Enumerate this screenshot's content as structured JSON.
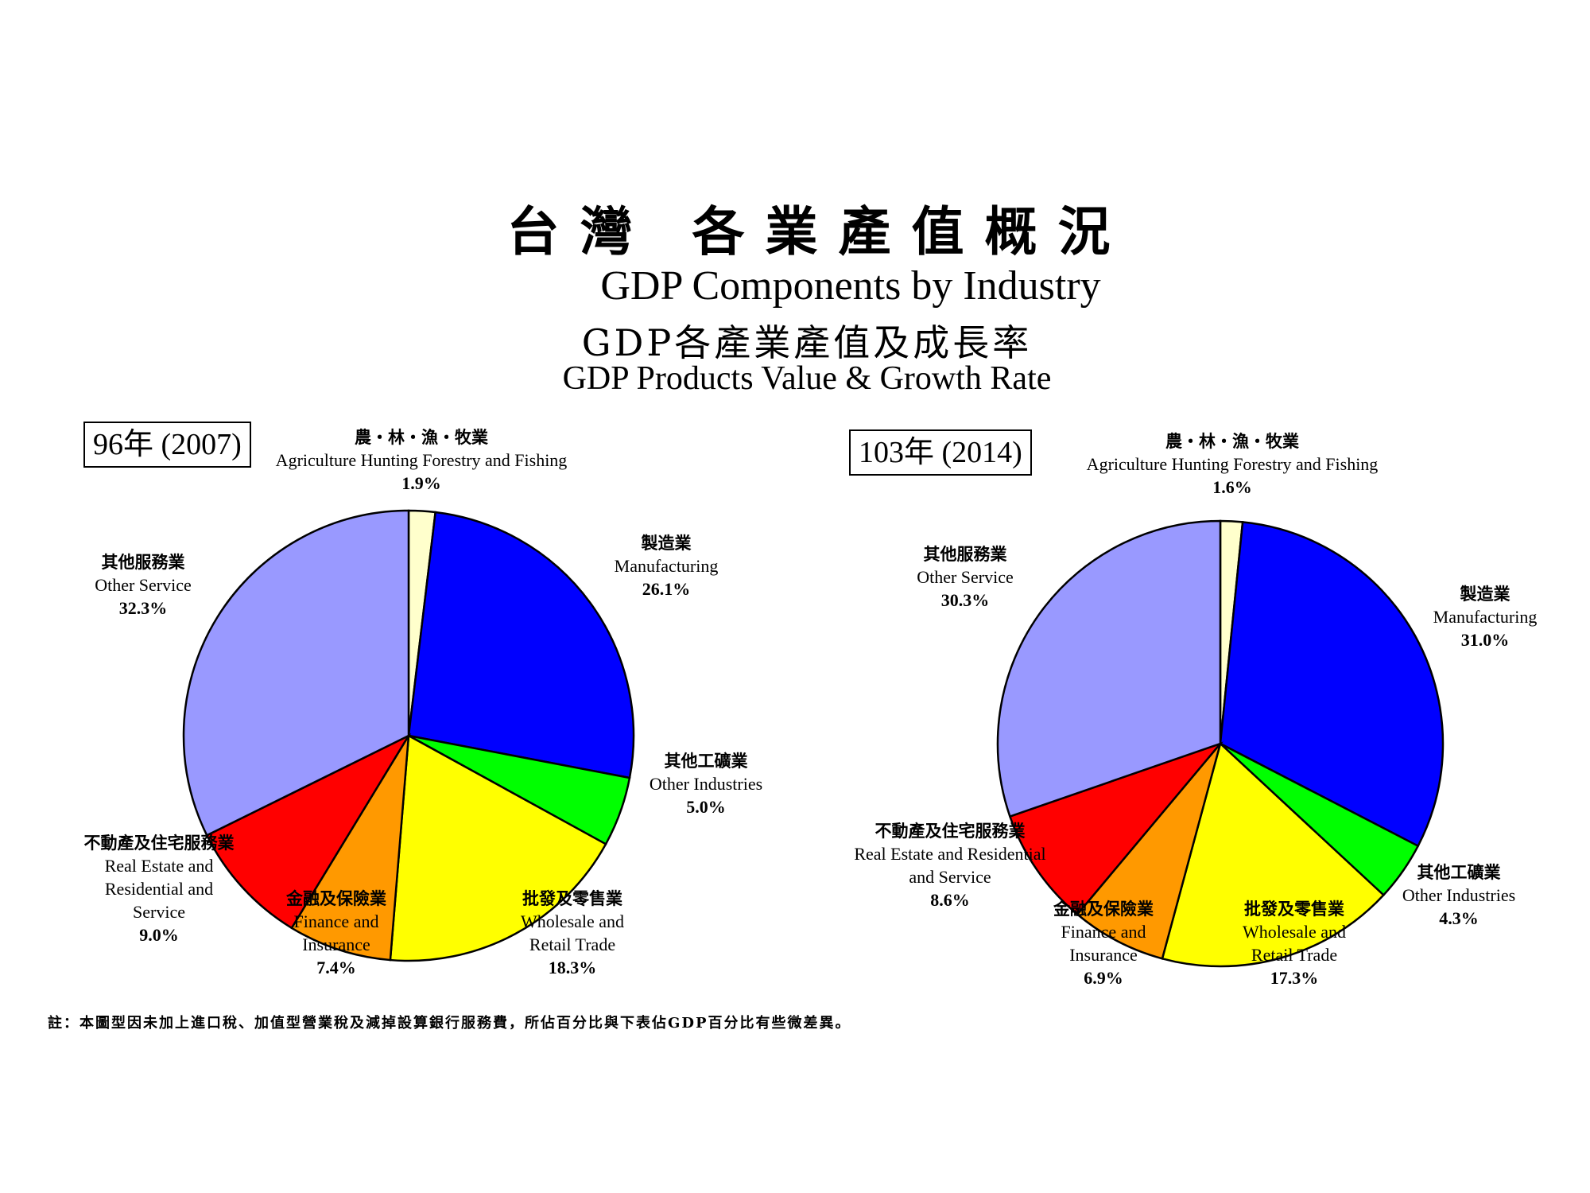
{
  "title_zh": "台灣 各業產值概況",
  "title_en": "GDP Components by Industry",
  "subtitle_zh": "GDP各產業產值及成長率",
  "subtitle_en": "GDP Products Value & Growth Rate",
  "footnote": "註：本圖型因未加上進口稅、加值型營業稅及減掉設算銀行服務費，所佔百分比與下表佔GDP百分比有些微差異。",
  "colors": {
    "agriculture": "#FFFFCC",
    "manufacturing": "#0000FF",
    "other_industries": "#00FF00",
    "wholesale_retail": "#FFFF00",
    "finance": "#FF9900",
    "real_estate": "#FF0000",
    "other_service": "#9999FF"
  },
  "chart_data": [
    {
      "type": "pie",
      "year_label": "96年 (2007)",
      "slices": [
        {
          "key": "agriculture",
          "zh": "農・林・漁・牧業",
          "en": [
            "Agriculture Hunting Forestry and Fishing"
          ],
          "value": 1.9,
          "pct": "1.9%"
        },
        {
          "key": "manufacturing",
          "zh": "製造業",
          "en": [
            "Manufacturing"
          ],
          "value": 26.1,
          "pct": "26.1%"
        },
        {
          "key": "other_industries",
          "zh": "其他工礦業",
          "en": [
            "Other Industries"
          ],
          "value": 5.0,
          "pct": "5.0%"
        },
        {
          "key": "wholesale_retail",
          "zh": "批發及零售業",
          "en": [
            "Wholesale and",
            "Retail Trade"
          ],
          "value": 18.3,
          "pct": "18.3%"
        },
        {
          "key": "finance",
          "zh": "金融及保險業",
          "en": [
            "Finance and",
            "Insurance"
          ],
          "value": 7.4,
          "pct": "7.4%"
        },
        {
          "key": "real_estate",
          "zh": "不動產及住宅服務業",
          "en": [
            "Real Estate and",
            "Residential and",
            "Service"
          ],
          "value": 9.0,
          "pct": "9.0%"
        },
        {
          "key": "other_service",
          "zh": "其他服務業",
          "en": [
            "Other Service"
          ],
          "value": 32.3,
          "pct": "32.3%"
        }
      ]
    },
    {
      "type": "pie",
      "year_label": "103年 (2014)",
      "slices": [
        {
          "key": "agriculture",
          "zh": "農・林・漁・牧業",
          "en": [
            "Agriculture Hunting Forestry and Fishing"
          ],
          "value": 1.6,
          "pct": "1.6%"
        },
        {
          "key": "manufacturing",
          "zh": "製造業",
          "en": [
            "Manufacturing"
          ],
          "value": 31.0,
          "pct": "31.0%"
        },
        {
          "key": "other_industries",
          "zh": "其他工礦業",
          "en": [
            "Other Industries"
          ],
          "value": 4.3,
          "pct": "4.3%"
        },
        {
          "key": "wholesale_retail",
          "zh": "批發及零售業",
          "en": [
            "Wholesale and",
            "Retail Trade"
          ],
          "value": 17.3,
          "pct": "17.3%"
        },
        {
          "key": "finance",
          "zh": "金融及保險業",
          "en": [
            "Finance and",
            "Insurance"
          ],
          "value": 6.9,
          "pct": "6.9%"
        },
        {
          "key": "real_estate",
          "zh": "不動產及住宅服務業",
          "en": [
            "Real Estate and Residential",
            "and Service"
          ],
          "value": 8.6,
          "pct": "8.6%"
        },
        {
          "key": "other_service",
          "zh": "其他服務業",
          "en": [
            "Other Service"
          ],
          "value": 30.3,
          "pct": "30.3%"
        }
      ]
    }
  ]
}
